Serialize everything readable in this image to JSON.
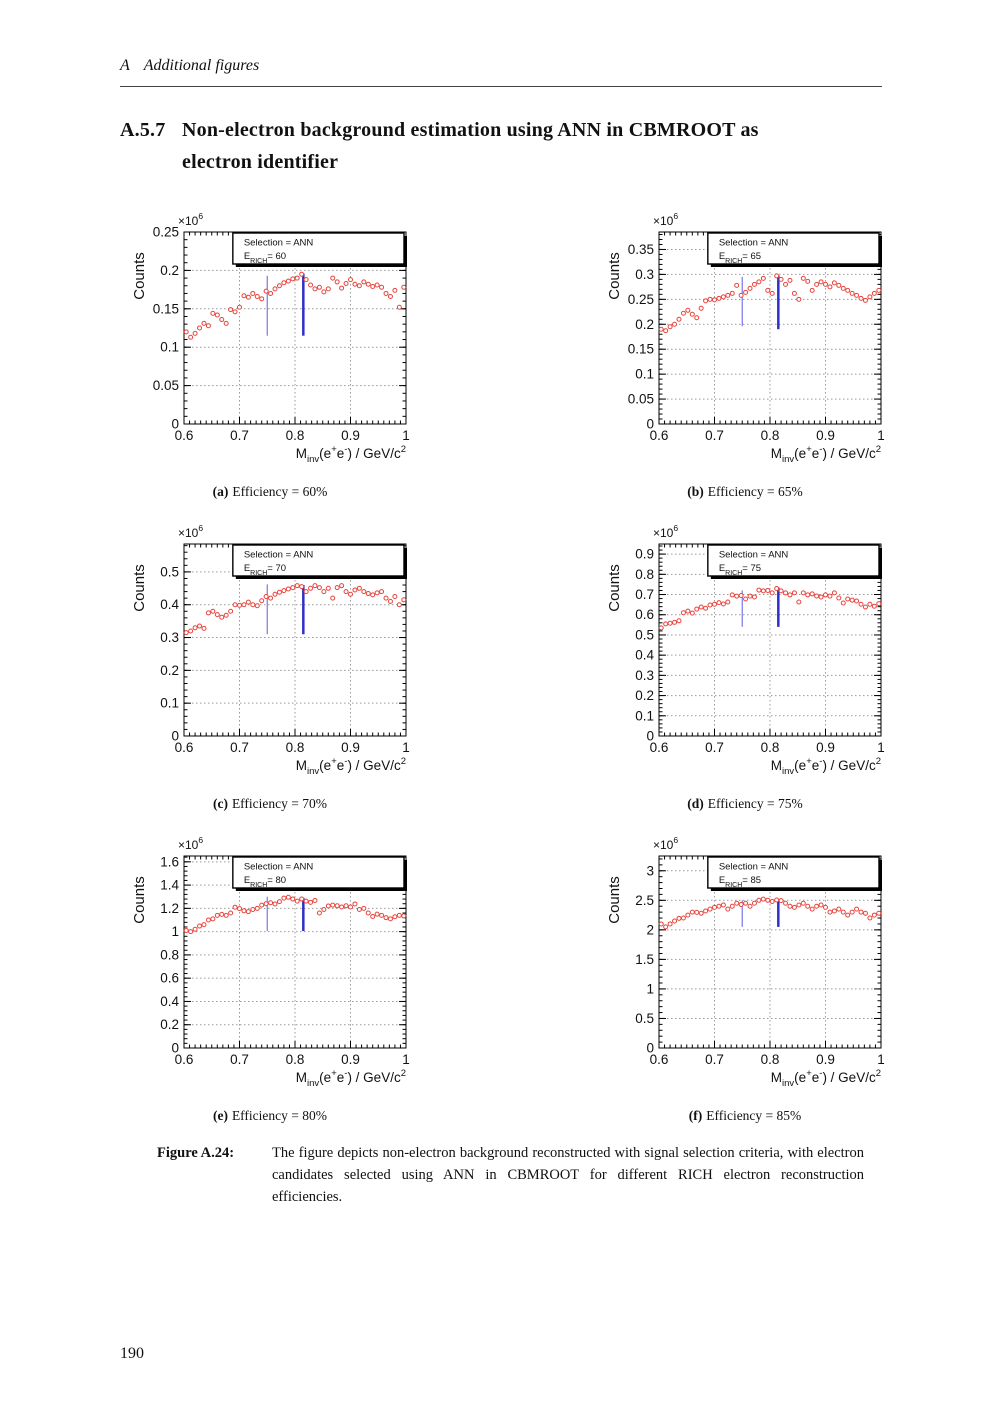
{
  "page": {
    "running_header_chapter": "A",
    "running_header_title": "Additional figures",
    "section_number": "A.5.7",
    "section_title_line1": "Non-electron background estimation using ANN in CBMROOT as",
    "section_title_line2": "electron identifier",
    "page_number": "190"
  },
  "figure_caption": {
    "label": "Figure A.24:",
    "text": "The figure depicts non-electron background reconstructed with signal selection criteria, with electron candidates selected using ANN in CBMROOT for different RICH electron reconstruction efficiencies."
  },
  "colors": {
    "marker": "#e8443c",
    "legend_text": "#ee2e24",
    "grid": "#999999",
    "frame": "#000000",
    "line_thin": "#7878e8",
    "line_thick": "#2f2fc8"
  },
  "axis_shared": {
    "ylabel": "Counts",
    "multiplier_parts": [
      [
        "t",
        "×10"
      ],
      [
        "sup",
        "6"
      ]
    ],
    "xlabel_parts": [
      [
        "t",
        "M"
      ],
      [
        "sub",
        "inv"
      ],
      [
        "t",
        "(e"
      ],
      [
        "sup",
        "+"
      ],
      [
        "t",
        "e"
      ],
      [
        "sup",
        "-"
      ],
      [
        "t",
        ") / GeV/c"
      ],
      [
        "sup",
        "2"
      ]
    ],
    "xlim": [
      0.6,
      1.0
    ],
    "xticks": {
      "vals": [
        0.6,
        0.7,
        0.8,
        0.9,
        1.0
      ],
      "labels": [
        "0.6",
        "0.7",
        "0.8",
        "0.9",
        "1"
      ]
    },
    "x_minor_step": 0.01,
    "x_values": [
      0.604,
      0.612,
      0.62,
      0.628,
      0.636,
      0.644,
      0.652,
      0.66,
      0.668,
      0.676,
      0.684,
      0.692,
      0.7,
      0.708,
      0.716,
      0.724,
      0.732,
      0.74,
      0.748,
      0.756,
      0.764,
      0.772,
      0.78,
      0.788,
      0.796,
      0.804,
      0.812,
      0.82,
      0.828,
      0.836,
      0.844,
      0.852,
      0.86,
      0.868,
      0.876,
      0.884,
      0.892,
      0.9,
      0.908,
      0.916,
      0.924,
      0.932,
      0.94,
      0.948,
      0.956,
      0.964,
      0.972,
      0.98,
      0.988,
      0.996
    ]
  },
  "chart_data": [
    {
      "type": "scatter",
      "panel_label": "(a)",
      "caption": "Efficiency = 60%",
      "legend": {
        "line1": "Selection = ANN",
        "line2_parts": [
          [
            "t",
            "E"
          ],
          [
            "sub",
            "RICH"
          ],
          [
            "t",
            "= 60"
          ]
        ]
      },
      "ylim": [
        0,
        0.25
      ],
      "yticks": {
        "vals": [
          0,
          0.05,
          0.1,
          0.15,
          0.2,
          0.25
        ],
        "labels": [
          "0",
          "0.05",
          "0.1",
          "0.15",
          "0.2",
          "0.25"
        ]
      },
      "y_minor_step": 0.01,
      "y_values": [
        0.12,
        0.113,
        0.118,
        0.125,
        0.131,
        0.128,
        0.144,
        0.142,
        0.136,
        0.131,
        0.149,
        0.146,
        0.152,
        0.167,
        0.165,
        0.17,
        0.166,
        0.163,
        0.173,
        0.17,
        0.176,
        0.18,
        0.184,
        0.186,
        0.189,
        0.19,
        0.195,
        0.188,
        0.181,
        0.176,
        0.178,
        0.172,
        0.176,
        0.19,
        0.185,
        0.177,
        0.183,
        0.188,
        0.182,
        0.18,
        0.185,
        0.182,
        0.179,
        0.181,
        0.178,
        0.17,
        0.166,
        0.174,
        0.152,
        0.178
      ],
      "marker_lines": [
        {
          "x": 0.75,
          "y1": 0.115,
          "y2": 0.193,
          "w": 1.2,
          "tone": "thin"
        },
        {
          "x": 0.815,
          "y1": 0.115,
          "y2": 0.196,
          "w": 2.5,
          "tone": "thick"
        }
      ]
    },
    {
      "type": "scatter",
      "panel_label": "(b)",
      "caption": "Efficiency = 65%",
      "legend": {
        "line1": "Selection = ANN",
        "line2_parts": [
          [
            "t",
            "E"
          ],
          [
            "sub",
            "RICH"
          ],
          [
            "t",
            "= 65"
          ]
        ]
      },
      "ylim": [
        0,
        0.385
      ],
      "yticks": {
        "vals": [
          0,
          0.05,
          0.1,
          0.15,
          0.2,
          0.25,
          0.3,
          0.35
        ],
        "labels": [
          "0",
          "0.05",
          "0.1",
          "0.15",
          "0.2",
          "0.25",
          "0.3",
          "0.35"
        ]
      },
      "y_minor_step": 0.01,
      "y_values": [
        0.19,
        0.187,
        0.195,
        0.2,
        0.21,
        0.222,
        0.228,
        0.22,
        0.213,
        0.232,
        0.247,
        0.25,
        0.249,
        0.252,
        0.255,
        0.258,
        0.262,
        0.278,
        0.258,
        0.264,
        0.272,
        0.28,
        0.285,
        0.292,
        0.268,
        0.262,
        0.297,
        0.29,
        0.28,
        0.288,
        0.262,
        0.25,
        0.292,
        0.286,
        0.268,
        0.28,
        0.285,
        0.28,
        0.275,
        0.283,
        0.278,
        0.272,
        0.268,
        0.262,
        0.258,
        0.252,
        0.248,
        0.255,
        0.262,
        0.268
      ],
      "marker_lines": [
        {
          "x": 0.75,
          "y1": 0.196,
          "y2": 0.295,
          "w": 1.2,
          "tone": "thin"
        },
        {
          "x": 0.815,
          "y1": 0.19,
          "y2": 0.298,
          "w": 2.5,
          "tone": "thick"
        }
      ]
    },
    {
      "type": "scatter",
      "panel_label": "(c)",
      "caption": "Efficiency = 70%",
      "legend": {
        "line1": "Selection = ANN",
        "line2_parts": [
          [
            "t",
            "E"
          ],
          [
            "sub",
            "RICH"
          ],
          [
            "t",
            "= 70"
          ]
        ]
      },
      "ylim": [
        0,
        0.585
      ],
      "yticks": {
        "vals": [
          0,
          0.1,
          0.2,
          0.3,
          0.4,
          0.5
        ],
        "labels": [
          "0",
          "0.1",
          "0.2",
          "0.3",
          "0.4",
          "0.5"
        ]
      },
      "y_minor_step": 0.02,
      "y_values": [
        0.315,
        0.32,
        0.33,
        0.335,
        0.328,
        0.375,
        0.38,
        0.37,
        0.362,
        0.368,
        0.38,
        0.4,
        0.398,
        0.4,
        0.408,
        0.4,
        0.397,
        0.412,
        0.425,
        0.42,
        0.432,
        0.438,
        0.443,
        0.448,
        0.452,
        0.458,
        0.455,
        0.44,
        0.45,
        0.458,
        0.452,
        0.44,
        0.45,
        0.42,
        0.452,
        0.458,
        0.44,
        0.432,
        0.445,
        0.45,
        0.44,
        0.434,
        0.43,
        0.436,
        0.44,
        0.42,
        0.41,
        0.425,
        0.4,
        0.415
      ],
      "marker_lines": [
        {
          "x": 0.75,
          "y1": 0.31,
          "y2": 0.462,
          "w": 1.2,
          "tone": "thin"
        },
        {
          "x": 0.815,
          "y1": 0.31,
          "y2": 0.46,
          "w": 2.5,
          "tone": "thick"
        }
      ]
    },
    {
      "type": "scatter",
      "panel_label": "(d)",
      "caption": "Efficiency = 75%",
      "legend": {
        "line1": "Selection = ANN",
        "line2_parts": [
          [
            "t",
            "E"
          ],
          [
            "sub",
            "RICH"
          ],
          [
            "t",
            "= 75"
          ]
        ]
      },
      "ylim": [
        0,
        0.95
      ],
      "yticks": {
        "vals": [
          0,
          0.1,
          0.2,
          0.3,
          0.4,
          0.5,
          0.6,
          0.7,
          0.8,
          0.9
        ],
        "labels": [
          "0",
          "0.1",
          "0.2",
          "0.3",
          "0.4",
          "0.5",
          "0.6",
          "0.7",
          "0.8",
          "0.9"
        ]
      },
      "y_minor_step": 0.02,
      "y_values": [
        0.535,
        0.555,
        0.558,
        0.562,
        0.57,
        0.61,
        0.618,
        0.608,
        0.628,
        0.638,
        0.632,
        0.648,
        0.652,
        0.66,
        0.653,
        0.663,
        0.698,
        0.692,
        0.695,
        0.678,
        0.692,
        0.688,
        0.722,
        0.718,
        0.72,
        0.708,
        0.73,
        0.718,
        0.708,
        0.698,
        0.708,
        0.663,
        0.708,
        0.698,
        0.703,
        0.693,
        0.688,
        0.698,
        0.692,
        0.708,
        0.683,
        0.658,
        0.678,
        0.672,
        0.668,
        0.652,
        0.638,
        0.652,
        0.642,
        0.655
      ],
      "marker_lines": [
        {
          "x": 0.75,
          "y1": 0.54,
          "y2": 0.72,
          "w": 1.2,
          "tone": "thin"
        },
        {
          "x": 0.815,
          "y1": 0.54,
          "y2": 0.735,
          "w": 2.5,
          "tone": "thick"
        }
      ]
    },
    {
      "type": "scatter",
      "panel_label": "(e)",
      "caption": "Efficiency = 80%",
      "legend": {
        "line1": "Selection = ANN",
        "line2_parts": [
          [
            "t",
            "E"
          ],
          [
            "sub",
            "RICH"
          ],
          [
            "t",
            "= 80"
          ]
        ]
      },
      "ylim": [
        0,
        1.65
      ],
      "yticks": {
        "vals": [
          0,
          0.2,
          0.4,
          0.6,
          0.8,
          1.0,
          1.2,
          1.4,
          1.6
        ],
        "labels": [
          "0",
          "0.2",
          "0.4",
          "0.6",
          "0.8",
          "1",
          "1.2",
          "1.4",
          "1.6"
        ]
      },
      "y_minor_step": 0.04,
      "y_values": [
        1.01,
        1.0,
        1.02,
        1.048,
        1.06,
        1.1,
        1.11,
        1.14,
        1.148,
        1.14,
        1.16,
        1.21,
        1.198,
        1.18,
        1.172,
        1.19,
        1.2,
        1.228,
        1.24,
        1.248,
        1.238,
        1.258,
        1.288,
        1.295,
        1.28,
        1.262,
        1.28,
        1.262,
        1.252,
        1.268,
        1.16,
        1.19,
        1.22,
        1.228,
        1.222,
        1.212,
        1.222,
        1.212,
        1.238,
        1.19,
        1.2,
        1.16,
        1.13,
        1.15,
        1.14,
        1.12,
        1.11,
        1.128,
        1.14,
        1.135
      ],
      "marker_lines": [
        {
          "x": 0.75,
          "y1": 1.005,
          "y2": 1.3,
          "w": 1.2,
          "tone": "thin"
        },
        {
          "x": 0.815,
          "y1": 1.005,
          "y2": 1.29,
          "w": 2.5,
          "tone": "thick"
        }
      ]
    },
    {
      "type": "scatter",
      "panel_label": "(f)",
      "caption": "Efficiency = 85%",
      "legend": {
        "line1": "Selection = ANN",
        "line2_parts": [
          [
            "t",
            "E"
          ],
          [
            "sub",
            "RICH"
          ],
          [
            "t",
            "= 85"
          ]
        ]
      },
      "ylim": [
        0,
        3.25
      ],
      "yticks": {
        "vals": [
          0,
          0.5,
          1.0,
          1.5,
          2.0,
          2.5,
          3.0
        ],
        "labels": [
          "0",
          "0.5",
          "1",
          "1.5",
          "2",
          "2.5",
          "3"
        ]
      },
      "y_minor_step": 0.1,
      "y_values": [
        2.1,
        2.05,
        2.1,
        2.15,
        2.195,
        2.2,
        2.25,
        2.3,
        2.295,
        2.28,
        2.32,
        2.35,
        2.38,
        2.4,
        2.42,
        2.35,
        2.4,
        2.45,
        2.43,
        2.45,
        2.4,
        2.45,
        2.5,
        2.52,
        2.5,
        2.48,
        2.505,
        2.495,
        2.45,
        2.4,
        2.38,
        2.42,
        2.45,
        2.4,
        2.35,
        2.4,
        2.42,
        2.38,
        2.3,
        2.32,
        2.35,
        2.3,
        2.25,
        2.3,
        2.35,
        2.3,
        2.28,
        2.2,
        2.25,
        2.28
      ],
      "marker_lines": [
        {
          "x": 0.75,
          "y1": 2.05,
          "y2": 2.5,
          "w": 1.2,
          "tone": "thin"
        },
        {
          "x": 0.815,
          "y1": 2.05,
          "y2": 2.52,
          "w": 2.5,
          "tone": "thick"
        }
      ]
    }
  ]
}
